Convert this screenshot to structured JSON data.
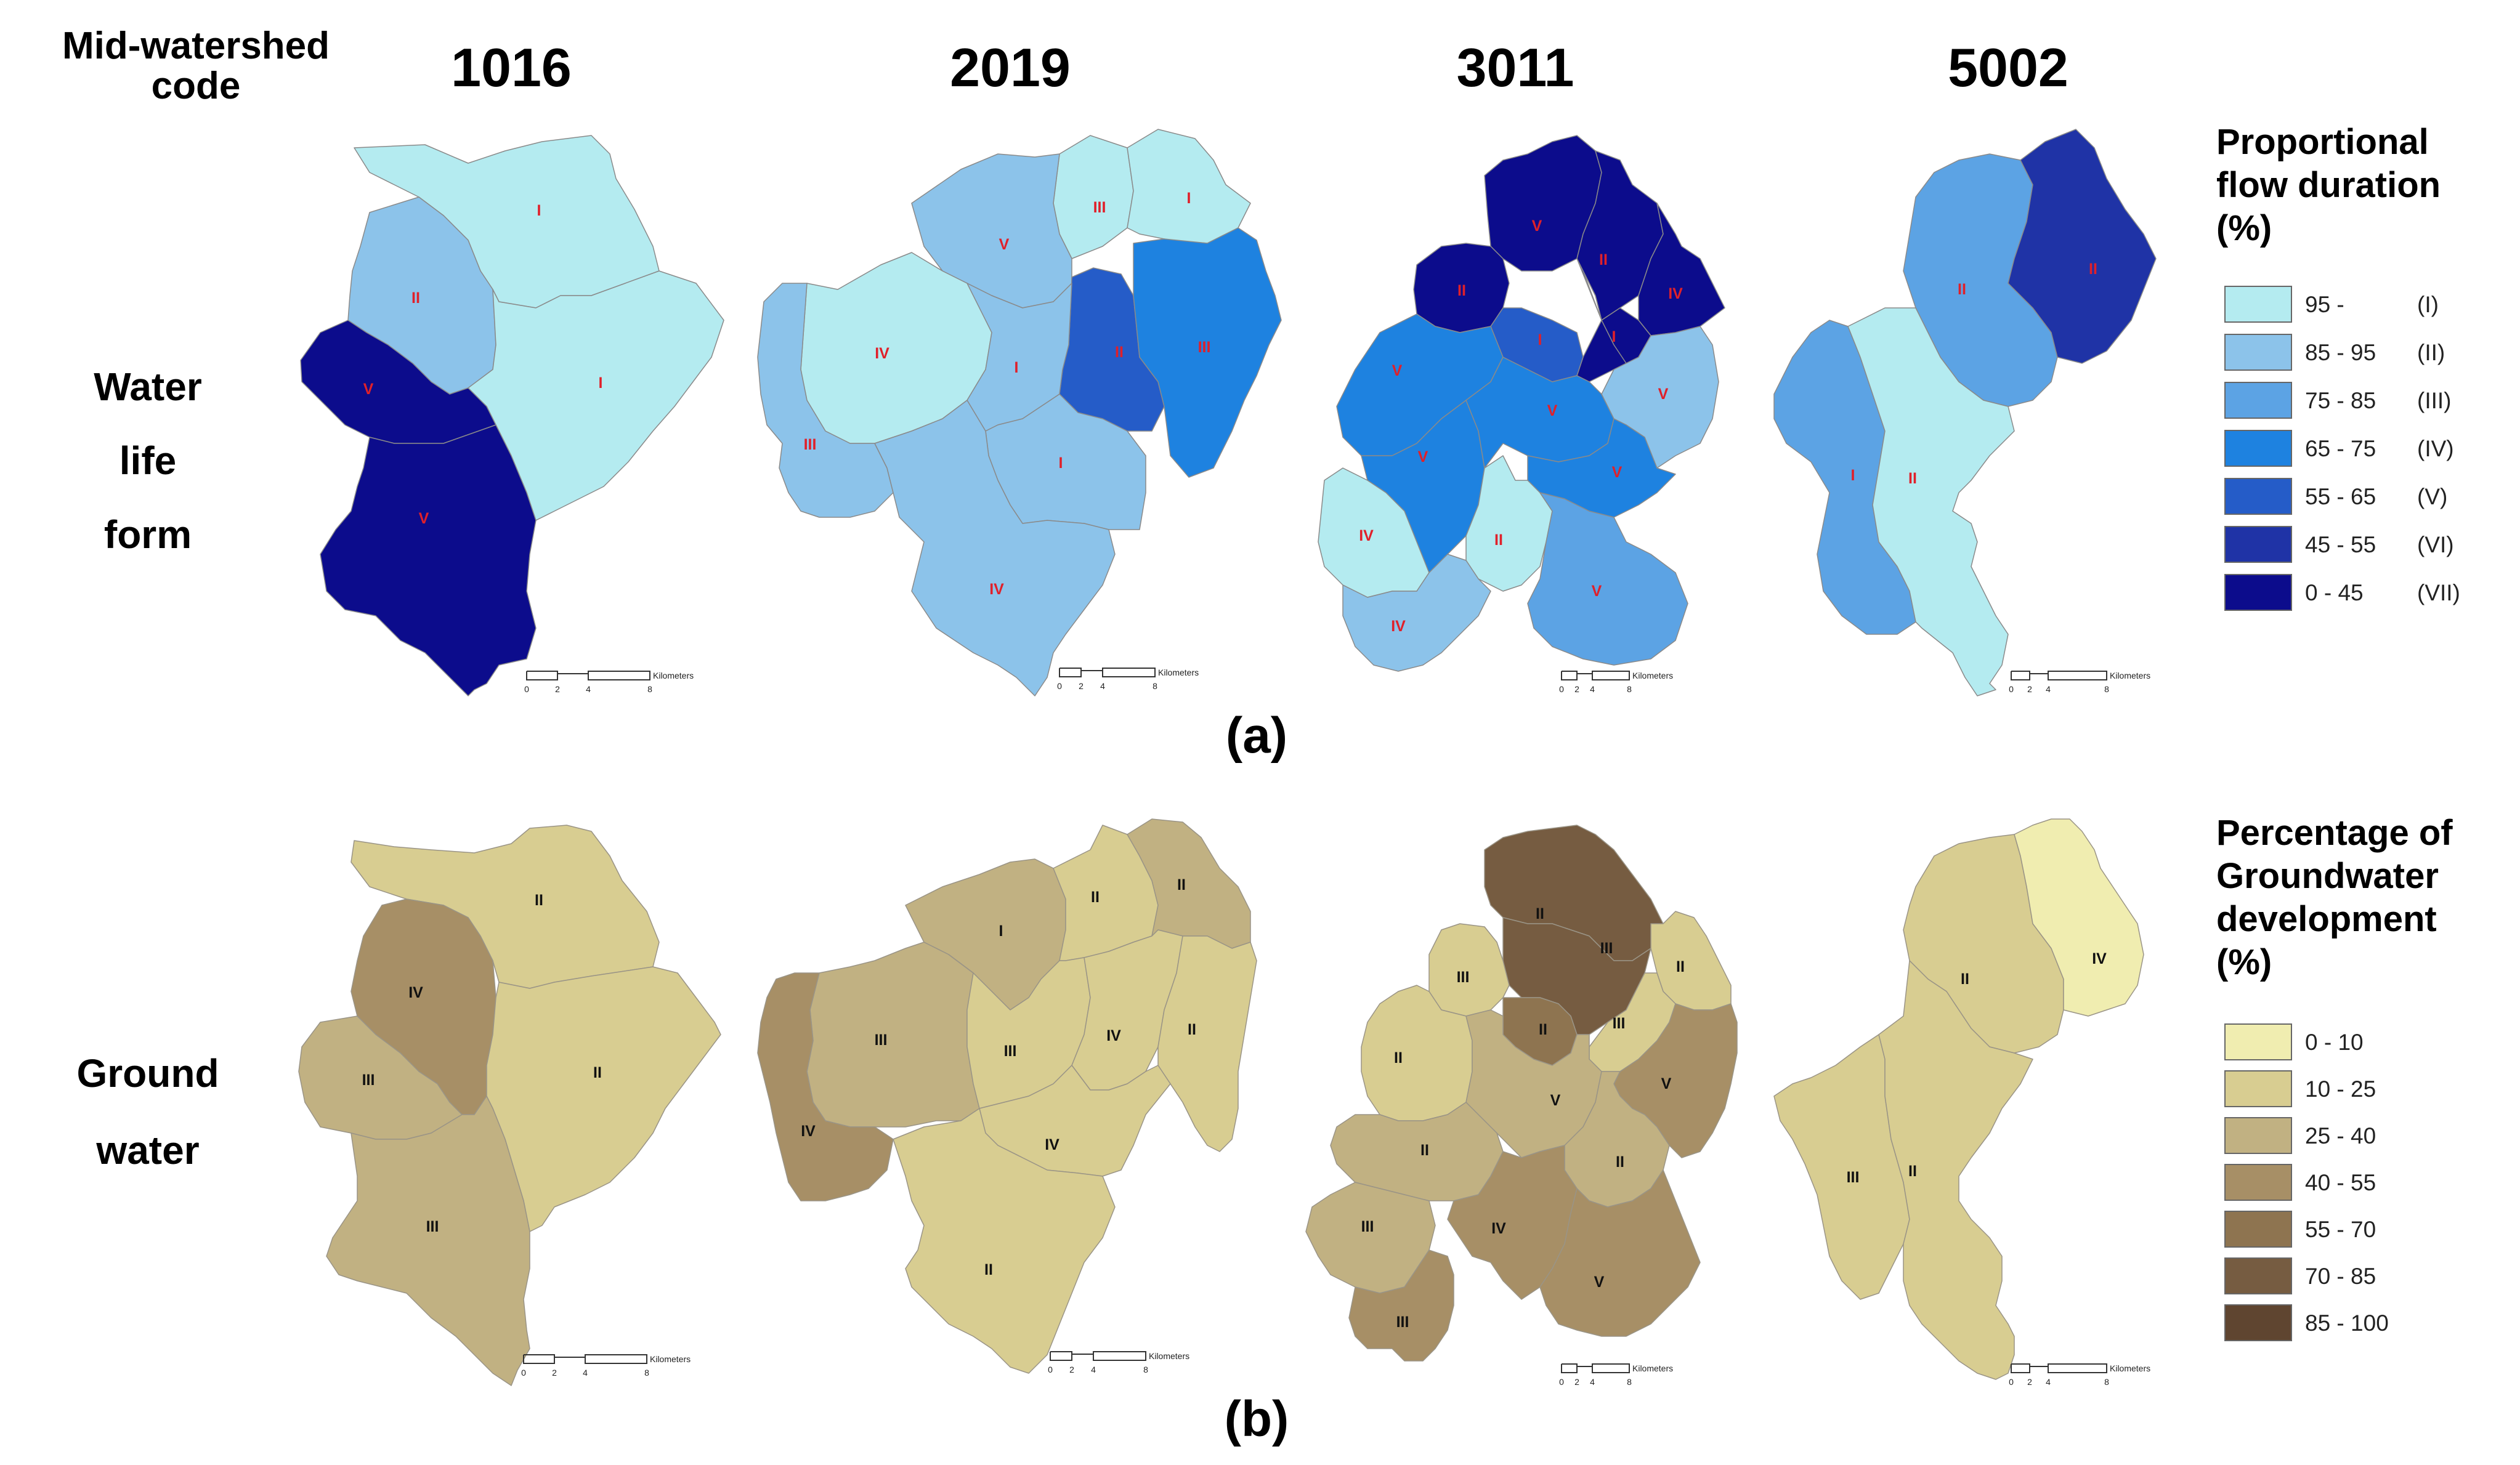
{
  "figure": {
    "header_label": "Mid-watershed\ncode",
    "codes": [
      "1016",
      "2019",
      "3011",
      "5002"
    ],
    "rows": [
      {
        "label": "Water\nlife\nform",
        "panel_label": "(a)"
      },
      {
        "label": "Ground\nwater",
        "panel_label": "(b)"
      }
    ]
  },
  "legend_a": {
    "title": "Proportional\nflow duration\n(%)",
    "items": [
      {
        "range": "95 -",
        "class": "(I)",
        "color": "#b4ebf0"
      },
      {
        "range": "85 - 95",
        "class": "(II)",
        "color": "#8cc3ea"
      },
      {
        "range": "75 - 85",
        "class": "(III)",
        "color": "#5ca3e4"
      },
      {
        "range": "65 - 75",
        "class": "(IV)",
        "color": "#1e82e0"
      },
      {
        "range": "55 - 65",
        "class": "(V)",
        "color": "#255cc8"
      },
      {
        "range": "45 - 55",
        "class": "(VI)",
        "color": "#1f33a6"
      },
      {
        "range": "0 - 45",
        "class": "(VII)",
        "color": "#0c0c8c"
      }
    ]
  },
  "legend_b": {
    "title": "Percentage of\nGroundwater\ndevelopment\n(%)",
    "items": [
      {
        "range": "0 - 10",
        "color": "#f0edb0"
      },
      {
        "range": "10 - 25",
        "color": "#d8cd91"
      },
      {
        "range": "25 - 40",
        "color": "#c1b182"
      },
      {
        "range": "40 - 55",
        "color": "#a78f66"
      },
      {
        "range": "55 - 70",
        "color": "#8e7450"
      },
      {
        "range": "70 - 85",
        "color": "#765c41"
      },
      {
        "range": "85 - 100",
        "color": "#5f4530"
      }
    ]
  },
  "scalebar": {
    "unit": "Kilometers",
    "ticks": [
      "0",
      "2",
      "4",
      "8"
    ]
  },
  "maps_a": [
    {
      "code": "1016",
      "zones": [
        {
          "label": "I",
          "fill": "#b4ebf0"
        },
        {
          "label": "II",
          "fill": "#8cc3ea"
        },
        {
          "label": "I",
          "fill": "#b4ebf0"
        },
        {
          "label": "V",
          "fill": "#0c0c8c"
        },
        {
          "label": "V",
          "fill": "#0c0c8c"
        }
      ]
    },
    {
      "code": "2019",
      "zones": [
        {
          "label": "III",
          "fill": "#b4ebf0"
        },
        {
          "label": "I",
          "fill": "#b4ebf0"
        },
        {
          "label": "V",
          "fill": "#8cc3ea"
        },
        {
          "label": "II",
          "fill": "#255cc8"
        },
        {
          "label": "III",
          "fill": "#1e82e0"
        },
        {
          "label": "IV",
          "fill": "#b4ebf0"
        },
        {
          "label": "I",
          "fill": "#8cc3ea"
        },
        {
          "label": "III",
          "fill": "#8cc3ea"
        },
        {
          "label": "I",
          "fill": "#8cc3ea"
        },
        {
          "label": "IV",
          "fill": "#8cc3ea"
        }
      ]
    },
    {
      "code": "3011",
      "zones": [
        {
          "label": "V",
          "fill": "#0c0c8c"
        },
        {
          "label": "II",
          "fill": "#0c0c8c"
        },
        {
          "label": "II",
          "fill": "#0c0c8c"
        },
        {
          "label": "IV",
          "fill": "#0c0c8c"
        },
        {
          "label": "I",
          "fill": "#0c0c8c"
        },
        {
          "label": "I",
          "fill": "#255cc8"
        },
        {
          "label": "V",
          "fill": "#1e82e0"
        },
        {
          "label": "V",
          "fill": "#1e82e0"
        },
        {
          "label": "V",
          "fill": "#1e82e0"
        },
        {
          "label": "V",
          "fill": "#8cc3ea"
        },
        {
          "label": "V",
          "fill": "#1e82e0"
        },
        {
          "label": "IV",
          "fill": "#b4ebf0"
        },
        {
          "label": "II",
          "fill": "#b4ebf0"
        },
        {
          "label": "V",
          "fill": "#5ca3e4"
        },
        {
          "label": "IV",
          "fill": "#8cc3ea"
        }
      ]
    },
    {
      "code": "5002",
      "zones": [
        {
          "label": "II",
          "fill": "#5ca3e4"
        },
        {
          "label": "II",
          "fill": "#1f33a6"
        },
        {
          "label": "I",
          "fill": "#5ca3e4"
        },
        {
          "label": "II",
          "fill": "#b4ebf0"
        }
      ]
    }
  ],
  "maps_b": [
    {
      "code": "1016",
      "zones": [
        {
          "label": "II",
          "fill": "#d8cd91"
        },
        {
          "label": "IV",
          "fill": "#a78f66"
        },
        {
          "label": "II",
          "fill": "#d8cd91"
        },
        {
          "label": "III",
          "fill": "#c1b182"
        },
        {
          "label": "III",
          "fill": "#c1b182"
        }
      ]
    },
    {
      "code": "2019",
      "zones": [
        {
          "label": "I",
          "fill": "#c1b182"
        },
        {
          "label": "II",
          "fill": "#d8cd91"
        },
        {
          "label": "II",
          "fill": "#c1b182"
        },
        {
          "label": "III",
          "fill": "#c1b182"
        },
        {
          "label": "III",
          "fill": "#d8cd91"
        },
        {
          "label": "IV",
          "fill": "#d8cd91"
        },
        {
          "label": "II",
          "fill": "#d8cd91"
        },
        {
          "label": "IV",
          "fill": "#a78f66"
        },
        {
          "label": "IV",
          "fill": "#d8cd91"
        },
        {
          "label": "II",
          "fill": "#d8cd91"
        }
      ]
    },
    {
      "code": "3011",
      "zones": [
        {
          "label": "II",
          "fill": "#765c41"
        },
        {
          "label": "III",
          "fill": "#765c41"
        },
        {
          "label": "II",
          "fill": "#8e7450"
        },
        {
          "label": "III",
          "fill": "#d8cd91"
        },
        {
          "label": "II",
          "fill": "#d8cd91"
        },
        {
          "label": "III",
          "fill": "#d8cd91"
        },
        {
          "label": "II",
          "fill": "#d8cd91"
        },
        {
          "label": "V",
          "fill": "#c1b182"
        },
        {
          "label": "V",
          "fill": "#a78f66"
        },
        {
          "label": "II",
          "fill": "#c1b182"
        },
        {
          "label": "II",
          "fill": "#c1b182"
        },
        {
          "label": "III",
          "fill": "#c1b182"
        },
        {
          "label": "IV",
          "fill": "#a78f66"
        },
        {
          "label": "III",
          "fill": "#a78f66"
        },
        {
          "label": "V",
          "fill": "#a78f66"
        }
      ]
    },
    {
      "code": "5002",
      "zones": [
        {
          "label": "II",
          "fill": "#d8cd91"
        },
        {
          "label": "IV",
          "fill": "#f0edb0"
        },
        {
          "label": "III",
          "fill": "#d8cd91"
        },
        {
          "label": "II",
          "fill": "#d8cd91"
        }
      ]
    }
  ]
}
